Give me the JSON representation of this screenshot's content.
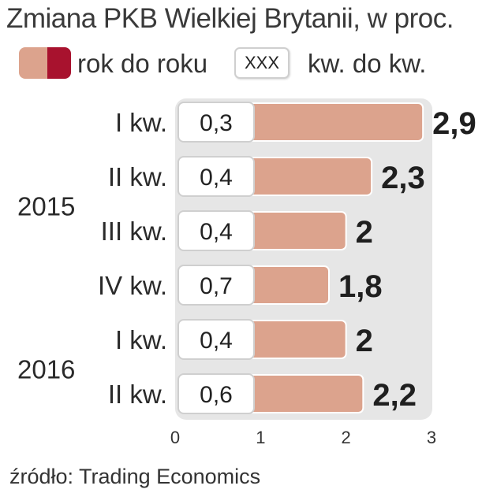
{
  "title": "Zmiana PKB Wielkiej Brytanii, w proc.",
  "legend": {
    "yoy_label": "rok do roku",
    "qoq_label": "kw. do kw.",
    "qoq_sample": "XXX",
    "yoy_colors": [
      "#dca38d",
      "#a8122e"
    ]
  },
  "colors": {
    "bar": "#dca38d",
    "plot_bg": "#e6e6e6",
    "box_border": "#cfcfcf"
  },
  "chart_data": {
    "type": "bar",
    "orientation": "horizontal",
    "categories": [
      "I kw.",
      "II kw.",
      "III kw.",
      "IV kw.",
      "I kw.",
      "II kw."
    ],
    "years": [
      {
        "label": "2015",
        "rows": [
          0,
          1,
          2,
          3
        ]
      },
      {
        "label": "2016",
        "rows": [
          4,
          5
        ]
      }
    ],
    "series": [
      {
        "name": "rok do roku",
        "values": [
          2.9,
          2.3,
          2,
          1.8,
          2,
          2.2
        ],
        "labels": [
          "2,9",
          "2,3",
          "2",
          "1,8",
          "2",
          "2,2"
        ]
      },
      {
        "name": "kw. do kw.",
        "values": [
          0.3,
          0.4,
          0.4,
          0.7,
          0.4,
          0.6
        ],
        "labels": [
          "0,3",
          "0,4",
          "0,4",
          "0,7",
          "0,4",
          "0,6"
        ]
      }
    ],
    "xlim": [
      0,
      3
    ],
    "xticks": [
      "0",
      "1",
      "2",
      "3"
    ]
  },
  "source": "źródło: Trading Economics"
}
